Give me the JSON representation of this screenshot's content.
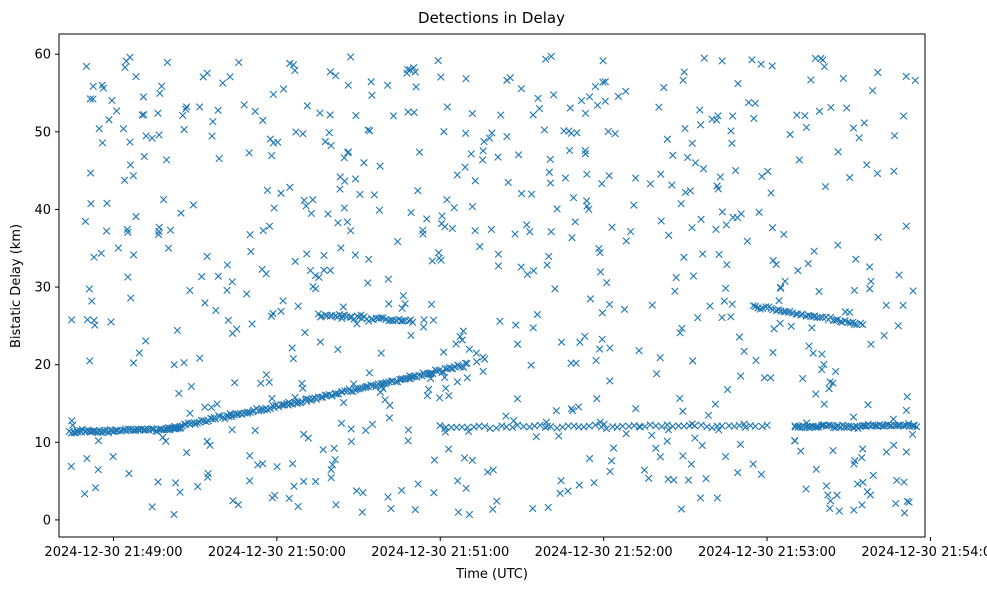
{
  "chart_data": {
    "type": "scatter",
    "title": "Detections in Delay",
    "xlabel": "Time (UTC)",
    "ylabel": "Bistatic Delay (km)",
    "marker": "x",
    "series_color": "#1f77b4",
    "xlim_seconds_after_21_48_40": [
      0,
      318
    ],
    "ylim": [
      -2.2,
      62.6
    ],
    "xtick_values_seconds": [
      20,
      80,
      140,
      200,
      260,
      320
    ],
    "xtick_labels": [
      "2024-12-30 21:49:00",
      "2024-12-30 21:50:00",
      "2024-12-30 21:51:00",
      "2024-12-30 21:52:00",
      "2024-12-30 21:53:00",
      "2024-12-30 21:54:00"
    ],
    "ytick_values": [
      0,
      10,
      20,
      30,
      40,
      50,
      60
    ],
    "ytick_labels": [
      "0",
      "10",
      "20",
      "30",
      "40",
      "50",
      "60"
    ],
    "track_segments": [
      {
        "name": "near-constant track A",
        "t_start": 4,
        "t_end": 45,
        "y_start": 11.3,
        "y_end": 11.8,
        "count": 70
      },
      {
        "name": "rising track",
        "t_start": 40,
        "t_end": 150,
        "y_start": 11.8,
        "y_end": 20.0,
        "count": 150
      },
      {
        "name": "mid track early",
        "t_start": 95,
        "t_end": 130,
        "y_start": 26.4,
        "y_end": 25.6,
        "count": 40
      },
      {
        "name": "mid track late",
        "t_start": 255,
        "t_end": 295,
        "y_start": 27.5,
        "y_end": 25.2,
        "count": 45
      },
      {
        "name": "near-constant track B",
        "t_start": 270,
        "t_end": 315,
        "y_start": 12.0,
        "y_end": 12.2,
        "count": 70
      },
      {
        "name": "near-constant track C",
        "t_start": 140,
        "t_end": 260,
        "y_start": 12.0,
        "y_end": 12.1,
        "count": 60
      }
    ],
    "clutter_points": {
      "t_range": [
        4,
        315
      ],
      "y_range": [
        0.5,
        59.8
      ],
      "count": 720
    }
  }
}
